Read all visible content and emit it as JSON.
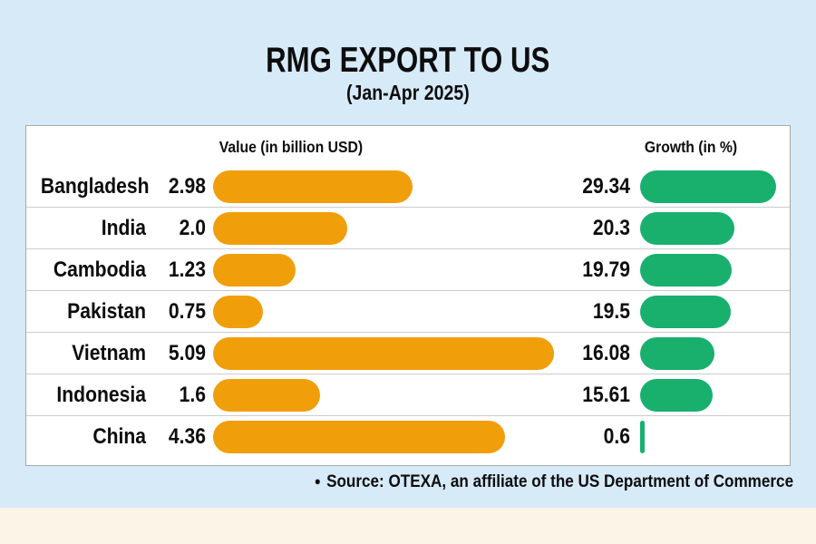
{
  "title": "RMG EXPORT TO US",
  "subtitle": "(Jan-Apr 2025)",
  "columns": {
    "value_label": "Value (in billion USD)",
    "growth_label": "Growth (in %)"
  },
  "source_bullet": "●",
  "source_text": "Source: OTEXA, an affiliate of the US Department of Commerce",
  "colors": {
    "background": "#d6eaf8",
    "footer_strip": "#fdf4e8",
    "panel": "#ffffff",
    "value_bar": "#f09e0a",
    "growth_bar": "#19b06e",
    "divider": "#cccccc",
    "text": "#0d0d0d"
  },
  "chart_data": {
    "type": "bar",
    "orientation": "horizontal",
    "title": "RMG EXPORT TO US (Jan-Apr 2025)",
    "categories": [
      "Bangladesh",
      "India",
      "Cambodia",
      "Pakistan",
      "Vietnam",
      "Indonesia",
      "China"
    ],
    "series": [
      {
        "name": "Value (in billion USD)",
        "values": [
          2.98,
          2.0,
          1.23,
          0.75,
          5.09,
          1.6,
          4.36
        ],
        "labels": [
          "2.98",
          "2.0",
          "1.23",
          "0.75",
          "5.09",
          "1.6",
          "4.36"
        ]
      },
      {
        "name": "Growth (in %)",
        "values": [
          29.34,
          20.3,
          19.79,
          19.5,
          16.08,
          15.61,
          0.6
        ],
        "labels": [
          "29.34",
          "20.3",
          "19.79",
          "19.5",
          "16.08",
          "15.61",
          "0.6"
        ]
      }
    ],
    "legend": false,
    "grid": false,
    "source": "OTEXA, an affiliate of the US Department of Commerce"
  }
}
